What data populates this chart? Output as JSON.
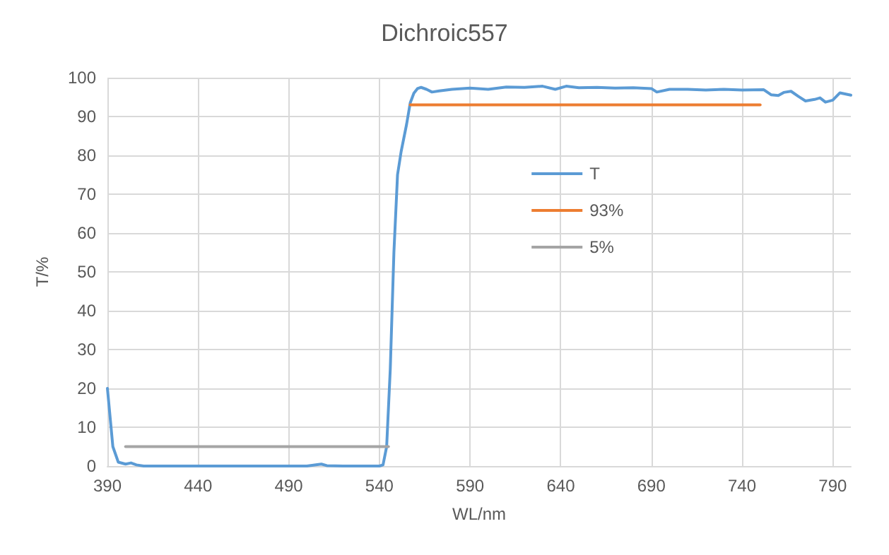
{
  "chart_data": {
    "type": "line",
    "title": "Dichroic557",
    "xlabel": "WL/nm",
    "ylabel": "T/%",
    "xlim": [
      390,
      800
    ],
    "xticks": [
      390,
      440,
      490,
      540,
      590,
      640,
      690,
      740,
      790
    ],
    "ylim": [
      0,
      100
    ],
    "yticks": [
      0,
      10,
      20,
      30,
      40,
      50,
      60,
      70,
      80,
      90,
      100
    ],
    "grid": true,
    "legend": "top",
    "marker": "none",
    "line_style": "solid",
    "series": [
      {
        "name": "T",
        "color": "#5b9bd5",
        "x": [
          390,
          393,
          396,
          400,
          403,
          406,
          410,
          415,
          450,
          500,
          505,
          508,
          511,
          520,
          540,
          542,
          544,
          546,
          548,
          550,
          552,
          555,
          557,
          559,
          561,
          563,
          566,
          569,
          573,
          580,
          590,
          600,
          610,
          620,
          630,
          637,
          643,
          650,
          660,
          670,
          680,
          690,
          693,
          700,
          710,
          720,
          730,
          740,
          752,
          756,
          760,
          763,
          767,
          771,
          775,
          780,
          783,
          786,
          790,
          794,
          800
        ],
        "values": [
          20,
          5,
          1,
          0.5,
          0.8,
          0.3,
          0,
          0,
          0,
          0,
          0.3,
          0.5,
          0.1,
          0,
          0,
          0.3,
          5,
          25,
          55,
          75,
          81,
          88,
          93.5,
          96,
          97.2,
          97.5,
          97,
          96.3,
          96.6,
          97,
          97.3,
          97,
          97.6,
          97.5,
          97.8,
          97,
          97.8,
          97.4,
          97.5,
          97.3,
          97.4,
          97.2,
          96.3,
          97,
          97,
          96.8,
          97,
          96.8,
          96.9,
          95.6,
          95.4,
          96.2,
          96.5,
          95.2,
          94,
          94.4,
          94.8,
          93.7,
          94.2,
          96.1,
          95.5
        ]
      },
      {
        "name": "93%",
        "color": "#ed7d31",
        "x": [
          557,
          750
        ],
        "values": [
          93,
          93
        ]
      },
      {
        "name": "5%",
        "color": "#a5a5a5",
        "x": [
          400,
          545
        ],
        "values": [
          5,
          5
        ]
      }
    ]
  }
}
